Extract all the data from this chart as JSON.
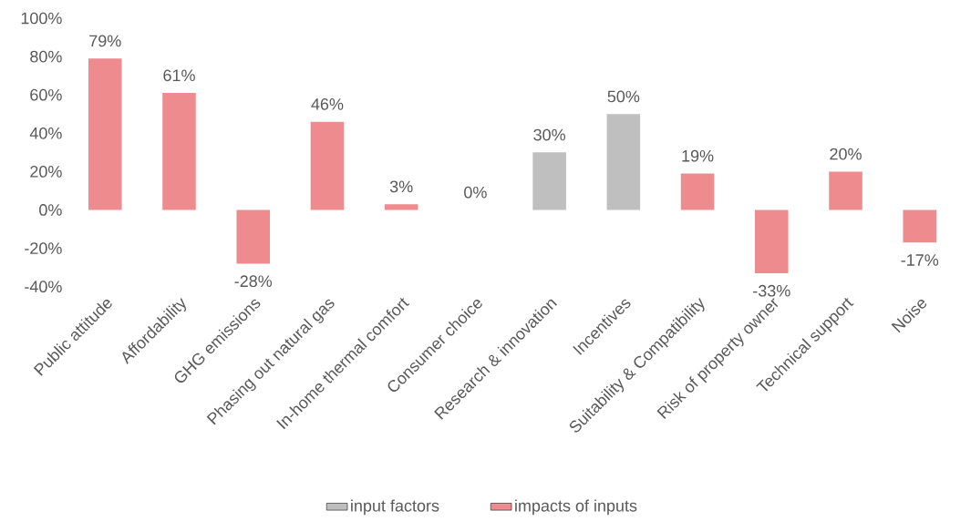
{
  "chart_data": {
    "type": "bar",
    "categories": [
      "Public attitude",
      "Affordability",
      "GHG emissions",
      "Phasing out natural gas",
      "In-home thermal comfort",
      "Consumer choice",
      "Research & innovation",
      "Incentives",
      "Suitability & Compatibility",
      "Risk of property owner",
      "Technical support",
      "Noise"
    ],
    "series": [
      {
        "name": "input factors",
        "color": "#bfbfbf",
        "values": [
          null,
          null,
          null,
          null,
          null,
          0,
          30,
          50,
          null,
          null,
          null,
          null
        ],
        "value_labels": [
          null,
          null,
          null,
          null,
          null,
          "0%",
          "30%",
          "50%",
          null,
          null,
          null,
          null
        ]
      },
      {
        "name": "impacts of inputs",
        "color": "#ee8b8e",
        "values": [
          79,
          61,
          -28,
          46,
          3,
          null,
          null,
          null,
          19,
          -33,
          20,
          -17
        ],
        "value_labels": [
          "79%",
          "61%",
          "-28%",
          "46%",
          "3%",
          null,
          null,
          null,
          "19%",
          "-33%",
          "20%",
          "-17%"
        ]
      }
    ],
    "ylim": [
      -40,
      100
    ],
    "yticks": [
      {
        "value": -40,
        "label": "-40%"
      },
      {
        "value": -20,
        "label": "-20%"
      },
      {
        "value": 0,
        "label": "0%"
      },
      {
        "value": 20,
        "label": "20%"
      },
      {
        "value": 40,
        "label": "40%"
      },
      {
        "value": 60,
        "label": "60%"
      },
      {
        "value": 80,
        "label": "80%"
      },
      {
        "value": 100,
        "label": "100%"
      }
    ],
    "legend": "bottom",
    "grid": false
  }
}
